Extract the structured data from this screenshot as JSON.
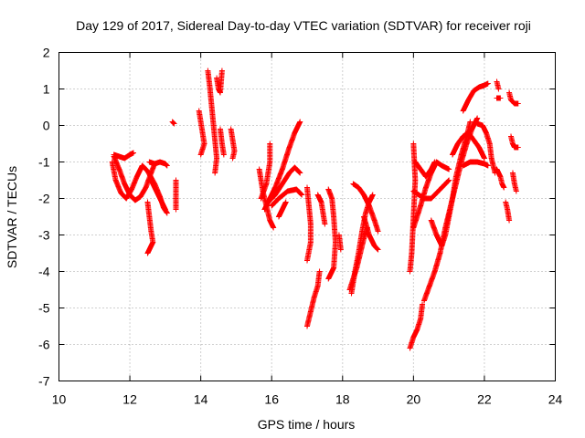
{
  "chart_data": {
    "type": "scatter",
    "title": "Day 129 of 2017, Sidereal Day-to-day VTEC variation (SDTVAR) for receiver roji",
    "xlabel": "GPS time / hours",
    "ylabel": "SDTVAR / TECUs",
    "xlim": [
      10,
      24
    ],
    "ylim": [
      -7,
      2
    ],
    "xticks": [
      "10",
      "12",
      "14",
      "16",
      "18",
      "20",
      "22",
      "24"
    ],
    "yticks": [
      "2",
      "1",
      "0",
      "-1",
      "-2",
      "-3",
      "-4",
      "-5",
      "-6",
      "-7"
    ],
    "grid": true,
    "marker": "+",
    "color": "#ff0000",
    "series": [
      {
        "name": "",
        "segments": [
          [
            [
              11.55,
              -0.85
            ],
            [
              11.7,
              -1.2
            ],
            [
              11.85,
              -1.6
            ],
            [
              12.0,
              -1.9
            ],
            [
              12.15,
              -2.05
            ],
            [
              12.3,
              -1.95
            ],
            [
              12.45,
              -1.7
            ],
            [
              12.6,
              -1.3
            ],
            [
              12.7,
              -1.05
            ]
          ],
          [
            [
              11.5,
              -1.0
            ],
            [
              11.6,
              -1.5
            ],
            [
              11.75,
              -1.85
            ],
            [
              11.9,
              -2.0
            ],
            [
              12.05,
              -1.75
            ],
            [
              12.2,
              -1.4
            ],
            [
              12.35,
              -1.1
            ],
            [
              12.5,
              -1.25
            ],
            [
              12.7,
              -1.6
            ],
            [
              12.85,
              -1.95
            ],
            [
              12.95,
              -2.25
            ],
            [
              13.05,
              -2.4
            ]
          ],
          [
            [
              11.55,
              -0.8
            ],
            [
              11.7,
              -0.85
            ],
            [
              11.85,
              -0.9
            ],
            [
              12.0,
              -0.8
            ],
            [
              12.1,
              -0.75
            ]
          ],
          [
            [
              12.5,
              -2.1
            ],
            [
              12.55,
              -2.5
            ],
            [
              12.6,
              -2.9
            ],
            [
              12.65,
              -3.2
            ],
            [
              12.5,
              -3.5
            ]
          ],
          [
            [
              12.55,
              -1.0
            ],
            [
              12.7,
              -1.05
            ],
            [
              12.85,
              -1.0
            ],
            [
              13.0,
              -1.05
            ],
            [
              13.05,
              -1.1
            ]
          ],
          [
            [
              12.6,
              -1.5
            ],
            [
              12.75,
              -1.8
            ],
            [
              12.9,
              -2.1
            ],
            [
              13.0,
              -2.3
            ]
          ],
          [
            [
              13.2,
              0.1
            ],
            [
              13.25,
              0.05
            ]
          ],
          [
            [
              13.3,
              -1.5
            ],
            [
              13.3,
              -1.8
            ],
            [
              13.3,
              -2.1
            ],
            [
              13.3,
              -2.3
            ]
          ],
          [
            [
              13.95,
              0.4
            ],
            [
              14.0,
              0.1
            ],
            [
              14.05,
              -0.2
            ],
            [
              14.1,
              -0.5
            ],
            [
              14.0,
              -0.8
            ]
          ],
          [
            [
              14.2,
              1.5
            ],
            [
              14.25,
              1.1
            ],
            [
              14.3,
              0.6
            ],
            [
              14.35,
              0.1
            ],
            [
              14.4,
              -0.4
            ],
            [
              14.45,
              -0.9
            ],
            [
              14.4,
              -1.3
            ]
          ],
          [
            [
              14.45,
              1.3
            ],
            [
              14.5,
              1.0
            ],
            [
              14.55,
              0.9
            ],
            [
              14.6,
              1.5
            ]
          ],
          [
            [
              14.55,
              -0.1
            ],
            [
              14.6,
              -0.5
            ],
            [
              14.65,
              -0.8
            ]
          ],
          [
            [
              14.85,
              -0.1
            ],
            [
              14.9,
              -0.4
            ],
            [
              14.95,
              -0.7
            ],
            [
              14.9,
              -0.9
            ]
          ],
          [
            [
              15.65,
              -1.2
            ],
            [
              15.75,
              -1.8
            ],
            [
              15.85,
              -2.2
            ],
            [
              15.95,
              -2.6
            ],
            [
              16.05,
              -2.8
            ]
          ],
          [
            [
              15.7,
              -2.0
            ],
            [
              15.85,
              -1.6
            ],
            [
              15.95,
              -1.0
            ],
            [
              15.95,
              -0.5
            ]
          ],
          [
            [
              15.8,
              -2.3
            ],
            [
              15.95,
              -2.0
            ],
            [
              16.1,
              -1.7
            ],
            [
              16.3,
              -1.2
            ],
            [
              16.5,
              -0.6
            ],
            [
              16.65,
              -0.2
            ],
            [
              16.8,
              0.1
            ]
          ],
          [
            [
              15.9,
              -2.1
            ],
            [
              16.1,
              -1.9
            ],
            [
              16.3,
              -1.6
            ],
            [
              16.5,
              -1.3
            ],
            [
              16.65,
              -1.15
            ],
            [
              16.8,
              -1.3
            ]
          ],
          [
            [
              16.0,
              -2.2
            ],
            [
              16.2,
              -2.0
            ],
            [
              16.45,
              -1.8
            ],
            [
              16.7,
              -1.75
            ],
            [
              16.85,
              -1.9
            ]
          ],
          [
            [
              16.2,
              -2.5
            ],
            [
              16.3,
              -2.3
            ],
            [
              16.4,
              -2.1
            ]
          ],
          [
            [
              17.0,
              -1.7
            ],
            [
              17.05,
              -2.2
            ],
            [
              17.1,
              -2.7
            ],
            [
              17.1,
              -3.2
            ],
            [
              17.0,
              -3.7
            ]
          ],
          [
            [
              17.0,
              -5.5
            ],
            [
              17.1,
              -5.1
            ],
            [
              17.2,
              -4.7
            ],
            [
              17.3,
              -4.4
            ],
            [
              17.35,
              -4.0
            ]
          ],
          [
            [
              17.3,
              -1.9
            ],
            [
              17.4,
              -2.1
            ],
            [
              17.45,
              -2.4
            ],
            [
              17.5,
              -2.7
            ]
          ],
          [
            [
              17.6,
              -1.75
            ],
            [
              17.7,
              -2.0
            ],
            [
              17.75,
              -2.5
            ],
            [
              17.8,
              -3.2
            ],
            [
              17.75,
              -3.9
            ],
            [
              17.6,
              -4.2
            ]
          ],
          [
            [
              17.9,
              -3.0
            ],
            [
              17.95,
              -3.4
            ]
          ],
          [
            [
              18.2,
              -4.5
            ],
            [
              18.3,
              -4.2
            ],
            [
              18.4,
              -3.9
            ],
            [
              18.5,
              -3.5
            ],
            [
              18.6,
              -3.1
            ],
            [
              18.7,
              -2.8
            ]
          ],
          [
            [
              18.25,
              -4.6
            ],
            [
              18.35,
              -4.0
            ],
            [
              18.45,
              -3.5
            ],
            [
              18.55,
              -2.9
            ],
            [
              18.65,
              -2.4
            ],
            [
              18.75,
              -2.1
            ],
            [
              18.85,
              -1.9
            ]
          ],
          [
            [
              18.3,
              -1.6
            ],
            [
              18.45,
              -1.7
            ],
            [
              18.6,
              -1.9
            ],
            [
              18.75,
              -2.2
            ],
            [
              18.9,
              -2.6
            ],
            [
              19.0,
              -2.9
            ]
          ],
          [
            [
              18.6,
              -2.5
            ],
            [
              18.75,
              -3.0
            ],
            [
              18.9,
              -3.3
            ],
            [
              19.0,
              -3.4
            ]
          ],
          [
            [
              19.9,
              -4.0
            ],
            [
              19.95,
              -3.5
            ],
            [
              20.0,
              -2.5
            ],
            [
              20.05,
              -1.5
            ],
            [
              20.0,
              -0.5
            ]
          ],
          [
            [
              19.9,
              -6.1
            ],
            [
              20.0,
              -5.8
            ],
            [
              20.1,
              -5.6
            ],
            [
              20.2,
              -5.3
            ],
            [
              20.25,
              -4.9
            ]
          ],
          [
            [
              20.0,
              -1.8
            ],
            [
              20.15,
              -1.9
            ],
            [
              20.3,
              -2.0
            ],
            [
              20.5,
              -2.0
            ],
            [
              20.7,
              -1.8
            ],
            [
              20.9,
              -1.6
            ],
            [
              21.0,
              -1.5
            ]
          ],
          [
            [
              20.0,
              -2.8
            ],
            [
              20.2,
              -2.2
            ],
            [
              20.35,
              -1.7
            ],
            [
              20.5,
              -1.3
            ],
            [
              20.65,
              -1.0
            ],
            [
              20.8,
              -1.1
            ],
            [
              21.0,
              -1.2
            ]
          ],
          [
            [
              20.05,
              -1.0
            ],
            [
              20.2,
              -1.2
            ],
            [
              20.35,
              -1.4
            ],
            [
              20.5,
              -1.2
            ],
            [
              20.6,
              -1.0
            ]
          ],
          [
            [
              20.3,
              -4.8
            ],
            [
              20.45,
              -4.4
            ],
            [
              20.6,
              -4.0
            ],
            [
              20.75,
              -3.5
            ],
            [
              20.9,
              -2.8
            ],
            [
              21.05,
              -2.2
            ],
            [
              21.2,
              -1.6
            ],
            [
              21.35,
              -1.0
            ],
            [
              21.5,
              -0.5
            ],
            [
              21.65,
              -0.1
            ],
            [
              21.8,
              0.2
            ]
          ],
          [
            [
              20.5,
              -2.6
            ],
            [
              20.65,
              -3.0
            ],
            [
              20.8,
              -3.3
            ],
            [
              20.9,
              -3.0
            ],
            [
              21.0,
              -2.5
            ],
            [
              21.1,
              -2.0
            ],
            [
              21.2,
              -1.4
            ],
            [
              21.35,
              -0.8
            ],
            [
              21.5,
              -0.3
            ],
            [
              21.6,
              0.1
            ]
          ],
          [
            [
              21.1,
              -0.8
            ],
            [
              21.25,
              -0.5
            ],
            [
              21.4,
              -0.3
            ],
            [
              21.55,
              -0.2
            ],
            [
              21.7,
              -0.4
            ],
            [
              21.85,
              -0.6
            ],
            [
              22.0,
              -0.9
            ]
          ],
          [
            [
              21.4,
              0.4
            ],
            [
              21.55,
              0.7
            ],
            [
              21.7,
              0.95
            ],
            [
              21.85,
              1.05
            ],
            [
              22.0,
              1.1
            ],
            [
              22.1,
              1.15
            ]
          ],
          [
            [
              21.4,
              -1.1
            ],
            [
              21.6,
              -1.0
            ],
            [
              21.8,
              -1.0
            ],
            [
              22.0,
              -1.05
            ],
            [
              22.1,
              -1.1
            ]
          ],
          [
            [
              21.8,
              0.05
            ],
            [
              21.95,
              0.0
            ],
            [
              22.05,
              -0.2
            ],
            [
              22.15,
              -0.5
            ],
            [
              22.2,
              -0.9
            ],
            [
              22.3,
              -1.3
            ]
          ],
          [
            [
              22.35,
              1.2
            ],
            [
              22.4,
              1.0
            ]
          ],
          [
            [
              22.35,
              0.75
            ],
            [
              22.45,
              0.75
            ]
          ],
          [
            [
              22.35,
              -1.2
            ],
            [
              22.45,
              -1.4
            ],
            [
              22.5,
              -1.6
            ],
            [
              22.55,
              -1.7
            ]
          ],
          [
            [
              22.6,
              -2.1
            ],
            [
              22.65,
              -2.3
            ],
            [
              22.7,
              -2.6
            ]
          ],
          [
            [
              22.7,
              0.9
            ],
            [
              22.75,
              0.7
            ],
            [
              22.85,
              0.6
            ],
            [
              22.95,
              0.6
            ]
          ],
          [
            [
              22.75,
              -0.3
            ],
            [
              22.8,
              -0.5
            ],
            [
              22.85,
              -0.6
            ],
            [
              22.95,
              -0.6
            ]
          ],
          [
            [
              22.8,
              -1.3
            ],
            [
              22.85,
              -1.6
            ],
            [
              22.9,
              -1.8
            ]
          ]
        ]
      }
    ]
  }
}
